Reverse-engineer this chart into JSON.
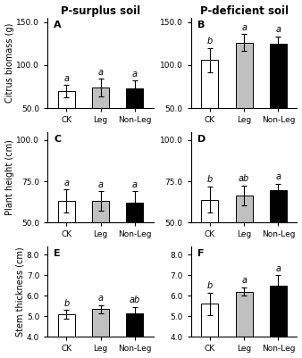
{
  "col_titles": [
    "P-surplus soil",
    "P-deficient soil"
  ],
  "row_labels": [
    "Citrus biomass (g)",
    "Plant height (cm)",
    "Stem thickness (cm)"
  ],
  "panel_labels": [
    "A",
    "B",
    "C",
    "D",
    "E",
    "F"
  ],
  "x_labels": [
    "CK",
    "Leg",
    "Non-Leg"
  ],
  "bar_colors_left": [
    "white",
    "#c0c0c0",
    "black"
  ],
  "bar_colors_right": [
    "white",
    "#c0c0c0",
    "black"
  ],
  "ylims": [
    [
      [
        50.0,
        155.0
      ],
      [
        50.0,
        155.0
      ]
    ],
    [
      [
        50.0,
        105.0
      ],
      [
        50.0,
        105.0
      ]
    ],
    [
      [
        4.0,
        8.4
      ],
      [
        4.0,
        8.4
      ]
    ]
  ],
  "yticks": [
    [
      [
        50.0,
        100.0,
        150.0
      ],
      [
        50.0,
        100.0,
        150.0
      ]
    ],
    [
      [
        50.0,
        75.0,
        100.0
      ],
      [
        50.0,
        75.0,
        100.0
      ]
    ],
    [
      [
        4.0,
        5.0,
        6.0,
        7.0,
        8.0
      ],
      [
        4.0,
        5.0,
        6.0,
        7.0,
        8.0
      ]
    ]
  ],
  "ytick_labels": [
    [
      [
        "50.0",
        "100.0",
        "150.0"
      ],
      [
        "50.0",
        "100.0",
        "150.0"
      ]
    ],
    [
      [
        "50.0",
        "75.0",
        "100.0"
      ],
      [
        "50.0",
        "75.0",
        "100.0"
      ]
    ],
    [
      [
        "4.0",
        "5.0",
        "6.0",
        "7.0",
        "8.0"
      ],
      [
        "4.0",
        "5.0",
        "6.0",
        "7.0",
        "8.0"
      ]
    ]
  ],
  "values": [
    [
      [
        70.0,
        74.0,
        73.0
      ],
      [
        106.0,
        126.0,
        125.0
      ]
    ],
    [
      [
        63.0,
        63.0,
        62.0
      ],
      [
        64.0,
        66.5,
        69.5
      ]
    ],
    [
      [
        5.1,
        5.35,
        5.15
      ],
      [
        5.6,
        6.2,
        6.5
      ]
    ]
  ],
  "errors": [
    [
      [
        7.0,
        10.0,
        9.0
      ],
      [
        14.0,
        10.0,
        8.0
      ]
    ],
    [
      [
        7.0,
        6.0,
        7.0
      ],
      [
        8.0,
        6.0,
        4.0
      ]
    ],
    [
      [
        0.2,
        0.2,
        0.3
      ],
      [
        0.55,
        0.2,
        0.5
      ]
    ]
  ],
  "sig_labels": [
    [
      [
        "a",
        "a",
        "a"
      ],
      [
        "b",
        "a",
        "a"
      ]
    ],
    [
      [
        "a",
        "a",
        "a"
      ],
      [
        "b",
        "ab",
        "a"
      ]
    ],
    [
      [
        "b",
        "a",
        "ab"
      ],
      [
        "b",
        "a",
        "a"
      ]
    ]
  ],
  "edgecolor": "black",
  "linewidth": 0.7,
  "background_color": "white",
  "title_fontsize": 8.5,
  "label_fontsize": 7.0,
  "tick_fontsize": 6.5,
  "sig_fontsize": 7.0,
  "panel_fontsize": 8.0
}
